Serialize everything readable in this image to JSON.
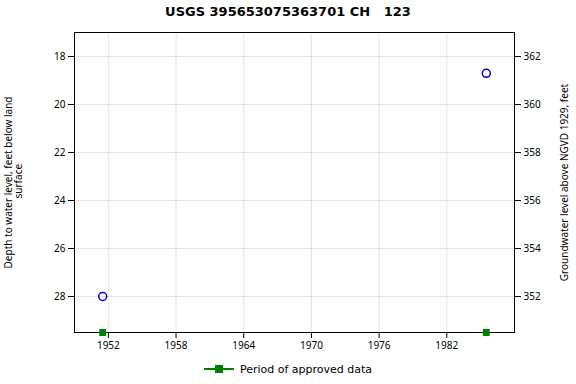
{
  "chart_data": {
    "type": "scatter",
    "title": "USGS 395653075363701 CH   123",
    "x": [
      1951.5,
      1985.5
    ],
    "series": [
      {
        "values": [
          28.0,
          18.7
        ],
        "color": "#0000cd",
        "marker": "circle"
      }
    ],
    "approved_periods": {
      "name": "Period of approved data",
      "color": "#008000",
      "marker": "square",
      "x": [
        1951.5,
        1985.5
      ]
    },
    "xlim": [
      1949,
      1988
    ],
    "xticks": [
      1952,
      1958,
      1964,
      1970,
      1976,
      1982
    ],
    "ylim": [
      29.5,
      17.0
    ],
    "yticks": [
      18.0,
      20.0,
      22.0,
      24.0,
      26.0,
      28.0
    ],
    "y2lim": [
      350.5,
      363.0
    ],
    "y2ticks": [
      352.0,
      354.0,
      356.0,
      358.0,
      360.0,
      362.0
    ],
    "ylabel": "Depth to water level, feet below land\n surface",
    "y2label": "Groundwater level above NGVD 1929, feet",
    "grid": true,
    "legend": "bottom"
  }
}
